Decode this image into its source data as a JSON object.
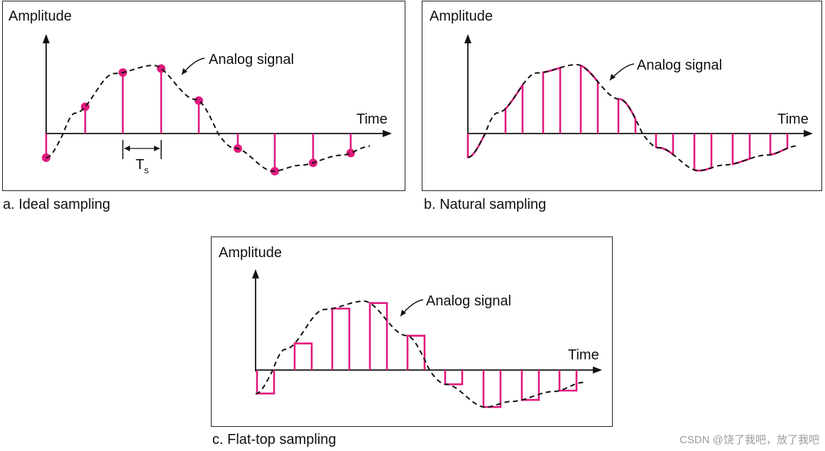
{
  "panels": [
    {
      "id": "a",
      "amplitude_label": "Amplitude",
      "time_label": "Time",
      "signal_label": "Analog signal",
      "caption": "a. Ideal sampling",
      "ts_label": "T",
      "ts_sub": "s",
      "style": "ideal"
    },
    {
      "id": "b",
      "amplitude_label": "Amplitude",
      "time_label": "Time",
      "signal_label": "Analog signal",
      "caption": "b. Natural sampling",
      "style": "natural"
    },
    {
      "id": "c",
      "amplitude_label": "Amplitude",
      "time_label": "Time",
      "signal_label": "Analog signal",
      "caption": "c. Flat-top sampling",
      "style": "flat"
    }
  ],
  "colors": {
    "sample": "#e0197d",
    "signal": "#111111",
    "axis": "#111111"
  },
  "watermark": "CSDN @饶了我吧，放了我吧"
}
